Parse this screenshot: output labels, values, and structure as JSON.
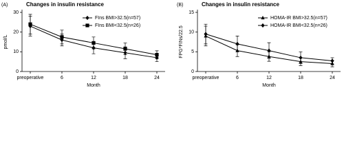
{
  "chart_data": [
    {
      "type": "line",
      "panel_label": "(A)",
      "title": "Changes in insulin resistance",
      "y_label": "pmol/L",
      "x_label": "Month",
      "categories": [
        "preoperative",
        "6",
        "12",
        "18",
        "24"
      ],
      "ylim": [
        0,
        30
      ],
      "yticks": [
        0,
        10,
        20,
        30
      ],
      "series": [
        {
          "name": "FIns BMI>32.5(n=57)",
          "color": "#000000",
          "marker": "diamond",
          "values": [
            23,
            16,
            12,
            9.5,
            7
          ],
          "errors": [
            5,
            3,
            3,
            3,
            2
          ]
        },
        {
          "name": "FIns  BMI<32.5(n=26)",
          "color": "#000000",
          "marker": "square",
          "values": [
            24,
            17.5,
            14.5,
            11.5,
            8.5
          ],
          "errors": [
            5,
            3.5,
            3,
            3,
            2
          ]
        }
      ]
    },
    {
      "type": "line",
      "panel_label": "(B)",
      "title": "Changes in insulin resistance",
      "y_label": "FPG*FINs/22.5",
      "x_label": "Month",
      "categories": [
        "preoperative",
        "6",
        "12",
        "18",
        "24"
      ],
      "ylim": [
        0,
        15
      ],
      "yticks": [
        0,
        5,
        10,
        15
      ],
      "series": [
        {
          "name": "HOMA-IR BMI>32.5(n=57)",
          "color": "#000000",
          "marker": "triangle",
          "values": [
            9,
            5.3,
            3.8,
            2.5,
            2
          ],
          "errors": [
            2.5,
            1.5,
            1.2,
            1,
            0.8
          ]
        },
        {
          "name": "HOMA-IR BMI<32.5(n=26)",
          "color": "#000000",
          "marker": "diamond",
          "values": [
            9.5,
            7,
            5.3,
            3.5,
            2.7
          ],
          "errors": [
            2.5,
            2,
            2,
            1.5,
            0.8
          ]
        }
      ]
    }
  ]
}
